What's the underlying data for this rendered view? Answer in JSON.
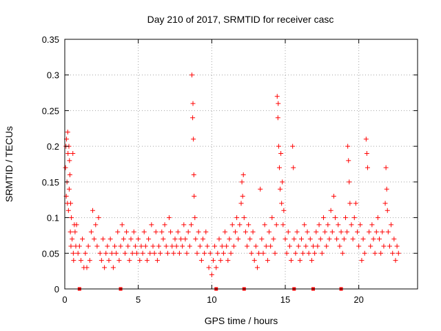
{
  "chart_data": {
    "type": "scatter",
    "title": "Day 210 of 2017, SRMTID for receiver casc",
    "xlabel": "GPS time / hours",
    "ylabel": "SRMTID / TECUs",
    "xlim": [
      0,
      24
    ],
    "ylim": [
      0,
      0.35
    ],
    "grid": true,
    "marker": "+",
    "color": "#ff0000",
    "x_ticks": [
      0,
      5,
      10,
      15,
      20
    ],
    "x_tick_labels": [
      "0",
      "5",
      "10",
      "15",
      "20"
    ],
    "y_ticks": [
      0,
      0.05,
      0.1,
      0.15,
      0.2,
      0.25,
      0.3,
      0.35
    ],
    "y_tick_labels": [
      "0",
      "0.05",
      "0.1",
      "0.15",
      "0.2",
      "0.25",
      "0.3",
      "0.35"
    ],
    "baseline_markers_x": [
      1.0,
      3.8,
      10.3,
      12.2,
      15.6,
      16.9,
      18.8
    ],
    "series": [
      {
        "name": "casc",
        "points": [
          [
            0.05,
            0.17
          ],
          [
            0.08,
            0.2
          ],
          [
            0.1,
            0.13
          ],
          [
            0.12,
            0.21
          ],
          [
            0.15,
            0.15
          ],
          [
            0.18,
            0.12
          ],
          [
            0.2,
            0.22
          ],
          [
            0.22,
            0.19
          ],
          [
            0.25,
            0.11
          ],
          [
            0.28,
            0.2
          ],
          [
            0.3,
            0.14
          ],
          [
            0.32,
            0.18
          ],
          [
            0.35,
            0.16
          ],
          [
            0.38,
            0.08
          ],
          [
            0.4,
            0.12
          ],
          [
            0.42,
            0.06
          ],
          [
            0.45,
            0.1
          ],
          [
            0.5,
            0.07
          ],
          [
            0.55,
            0.19
          ],
          [
            0.58,
            0.05
          ],
          [
            0.6,
            0.04
          ],
          [
            0.65,
            0.09
          ],
          [
            0.7,
            0.08
          ],
          [
            0.75,
            0.06
          ],
          [
            0.8,
            0.09
          ],
          [
            0.9,
            0.05
          ],
          [
            1.0,
            0.06
          ],
          [
            1.1,
            0.04
          ],
          [
            1.2,
            0.07
          ],
          [
            1.3,
            0.03
          ],
          [
            1.4,
            0.05
          ],
          [
            1.5,
            0.03
          ],
          [
            1.6,
            0.06
          ],
          [
            1.7,
            0.04
          ],
          [
            1.8,
            0.08
          ],
          [
            1.9,
            0.11
          ],
          [
            2.0,
            0.07
          ],
          [
            2.1,
            0.09
          ],
          [
            2.2,
            0.06
          ],
          [
            2.3,
            0.1
          ],
          [
            2.4,
            0.05
          ],
          [
            2.5,
            0.04
          ],
          [
            2.6,
            0.07
          ],
          [
            2.7,
            0.03
          ],
          [
            2.8,
            0.05
          ],
          [
            2.9,
            0.06
          ],
          [
            3.0,
            0.04
          ],
          [
            3.1,
            0.07
          ],
          [
            3.2,
            0.05
          ],
          [
            3.3,
            0.03
          ],
          [
            3.4,
            0.06
          ],
          [
            3.5,
            0.05
          ],
          [
            3.6,
            0.08
          ],
          [
            3.7,
            0.04
          ],
          [
            3.8,
            0.06
          ],
          [
            3.9,
            0.09
          ],
          [
            4.0,
            0.07
          ],
          [
            4.1,
            0.05
          ],
          [
            4.2,
            0.08
          ],
          [
            4.3,
            0.06
          ],
          [
            4.4,
            0.04
          ],
          [
            4.5,
            0.07
          ],
          [
            4.6,
            0.05
          ],
          [
            4.7,
            0.08
          ],
          [
            4.8,
            0.06
          ],
          [
            4.9,
            0.05
          ],
          [
            5.0,
            0.07
          ],
          [
            5.1,
            0.04
          ],
          [
            5.2,
            0.06
          ],
          [
            5.3,
            0.05
          ],
          [
            5.4,
            0.08
          ],
          [
            5.5,
            0.06
          ],
          [
            5.6,
            0.04
          ],
          [
            5.7,
            0.07
          ],
          [
            5.8,
            0.05
          ],
          [
            5.9,
            0.09
          ],
          [
            6.0,
            0.06
          ],
          [
            6.1,
            0.05
          ],
          [
            6.2,
            0.08
          ],
          [
            6.3,
            0.04
          ],
          [
            6.4,
            0.06
          ],
          [
            6.5,
            0.05
          ],
          [
            6.6,
            0.08
          ],
          [
            6.7,
            0.07
          ],
          [
            6.8,
            0.09
          ],
          [
            6.9,
            0.06
          ],
          [
            7.0,
            0.05
          ],
          [
            7.1,
            0.1
          ],
          [
            7.2,
            0.08
          ],
          [
            7.3,
            0.06
          ],
          [
            7.4,
            0.05
          ],
          [
            7.5,
            0.07
          ],
          [
            7.6,
            0.06
          ],
          [
            7.7,
            0.08
          ],
          [
            7.8,
            0.05
          ],
          [
            7.9,
            0.07
          ],
          [
            8.0,
            0.06
          ],
          [
            8.1,
            0.09
          ],
          [
            8.2,
            0.07
          ],
          [
            8.3,
            0.05
          ],
          [
            8.4,
            0.08
          ],
          [
            8.5,
            0.06
          ],
          [
            8.6,
            0.09
          ],
          [
            8.65,
            0.3
          ],
          [
            8.7,
            0.24
          ],
          [
            8.72,
            0.26
          ],
          [
            8.75,
            0.21
          ],
          [
            8.78,
            0.16
          ],
          [
            8.8,
            0.13
          ],
          [
            8.85,
            0.1
          ],
          [
            8.9,
            0.07
          ],
          [
            9.0,
            0.05
          ],
          [
            9.1,
            0.08
          ],
          [
            9.2,
            0.06
          ],
          [
            9.3,
            0.04
          ],
          [
            9.4,
            0.07
          ],
          [
            9.5,
            0.05
          ],
          [
            9.6,
            0.08
          ],
          [
            9.7,
            0.06
          ],
          [
            9.8,
            0.03
          ],
          [
            9.9,
            0.05
          ],
          [
            10.0,
            0.02
          ],
          [
            10.1,
            0.04
          ],
          [
            10.2,
            0.06
          ],
          [
            10.3,
            0.03
          ],
          [
            10.4,
            0.05
          ],
          [
            10.5,
            0.07
          ],
          [
            10.6,
            0.04
          ],
          [
            10.7,
            0.06
          ],
          [
            10.8,
            0.05
          ],
          [
            10.9,
            0.08
          ],
          [
            11.0,
            0.06
          ],
          [
            11.1,
            0.04
          ],
          [
            11.2,
            0.07
          ],
          [
            11.3,
            0.05
          ],
          [
            11.4,
            0.09
          ],
          [
            11.5,
            0.06
          ],
          [
            11.6,
            0.08
          ],
          [
            11.7,
            0.1
          ],
          [
            11.8,
            0.07
          ],
          [
            11.9,
            0.09
          ],
          [
            12.0,
            0.12
          ],
          [
            12.05,
            0.15
          ],
          [
            12.1,
            0.13
          ],
          [
            12.15,
            0.16
          ],
          [
            12.2,
            0.1
          ],
          [
            12.3,
            0.08
          ],
          [
            12.4,
            0.06
          ],
          [
            12.5,
            0.09
          ],
          [
            12.6,
            0.07
          ],
          [
            12.7,
            0.05
          ],
          [
            12.8,
            0.08
          ],
          [
            12.9,
            0.04
          ],
          [
            13.0,
            0.06
          ],
          [
            13.1,
            0.03
          ],
          [
            13.2,
            0.05
          ],
          [
            13.3,
            0.14
          ],
          [
            13.4,
            0.07
          ],
          [
            13.5,
            0.05
          ],
          [
            13.6,
            0.09
          ],
          [
            13.7,
            0.06
          ],
          [
            13.8,
            0.04
          ],
          [
            13.9,
            0.08
          ],
          [
            14.0,
            0.06
          ],
          [
            14.1,
            0.1
          ],
          [
            14.2,
            0.07
          ],
          [
            14.3,
            0.05
          ],
          [
            14.4,
            0.09
          ],
          [
            14.45,
            0.27
          ],
          [
            14.5,
            0.24
          ],
          [
            14.52,
            0.26
          ],
          [
            14.55,
            0.2
          ],
          [
            14.6,
            0.17
          ],
          [
            14.65,
            0.14
          ],
          [
            14.7,
            0.19
          ],
          [
            14.75,
            0.12
          ],
          [
            14.8,
            0.15
          ],
          [
            14.85,
            0.09
          ],
          [
            14.9,
            0.11
          ],
          [
            15.0,
            0.07
          ],
          [
            15.1,
            0.05
          ],
          [
            15.2,
            0.08
          ],
          [
            15.3,
            0.06
          ],
          [
            15.4,
            0.04
          ],
          [
            15.5,
            0.2
          ],
          [
            15.55,
            0.17
          ],
          [
            15.6,
            0.07
          ],
          [
            15.7,
            0.05
          ],
          [
            15.8,
            0.08
          ],
          [
            15.9,
            0.06
          ],
          [
            16.0,
            0.04
          ],
          [
            16.1,
            0.07
          ],
          [
            16.2,
            0.05
          ],
          [
            16.3,
            0.09
          ],
          [
            16.4,
            0.06
          ],
          [
            16.5,
            0.08
          ],
          [
            16.6,
            0.05
          ],
          [
            16.7,
            0.07
          ],
          [
            16.8,
            0.04
          ],
          [
            16.9,
            0.06
          ],
          [
            17.0,
            0.05
          ],
          [
            17.1,
            0.08
          ],
          [
            17.2,
            0.06
          ],
          [
            17.3,
            0.09
          ],
          [
            17.4,
            0.07
          ],
          [
            17.5,
            0.05
          ],
          [
            17.6,
            0.1
          ],
          [
            17.7,
            0.08
          ],
          [
            17.8,
            0.06
          ],
          [
            17.9,
            0.09
          ],
          [
            18.0,
            0.07
          ],
          [
            18.1,
            0.11
          ],
          [
            18.2,
            0.08
          ],
          [
            18.3,
            0.13
          ],
          [
            18.4,
            0.1
          ],
          [
            18.5,
            0.07
          ],
          [
            18.6,
            0.09
          ],
          [
            18.7,
            0.06
          ],
          [
            18.8,
            0.08
          ],
          [
            18.9,
            0.05
          ],
          [
            19.0,
            0.07
          ],
          [
            19.1,
            0.1
          ],
          [
            19.2,
            0.08
          ],
          [
            19.25,
            0.2
          ],
          [
            19.3,
            0.18
          ],
          [
            19.35,
            0.15
          ],
          [
            19.4,
            0.12
          ],
          [
            19.5,
            0.09
          ],
          [
            19.6,
            0.07
          ],
          [
            19.7,
            0.1
          ],
          [
            19.8,
            0.12
          ],
          [
            19.9,
            0.08
          ],
          [
            20.0,
            0.06
          ],
          [
            20.1,
            0.09
          ],
          [
            20.2,
            0.04
          ],
          [
            20.3,
            0.07
          ],
          [
            20.4,
            0.05
          ],
          [
            20.5,
            0.21
          ],
          [
            20.55,
            0.19
          ],
          [
            20.6,
            0.17
          ],
          [
            20.7,
            0.08
          ],
          [
            20.8,
            0.06
          ],
          [
            20.9,
            0.09
          ],
          [
            21.0,
            0.07
          ],
          [
            21.1,
            0.05
          ],
          [
            21.2,
            0.08
          ],
          [
            21.3,
            0.1
          ],
          [
            21.4,
            0.07
          ],
          [
            21.5,
            0.05
          ],
          [
            21.6,
            0.08
          ],
          [
            21.7,
            0.06
          ],
          [
            21.8,
            0.12
          ],
          [
            21.85,
            0.17
          ],
          [
            21.9,
            0.14
          ],
          [
            21.95,
            0.11
          ],
          [
            22.0,
            0.08
          ],
          [
            22.1,
            0.06
          ],
          [
            22.2,
            0.09
          ],
          [
            22.3,
            0.05
          ],
          [
            22.4,
            0.07
          ],
          [
            22.5,
            0.04
          ],
          [
            22.6,
            0.06
          ],
          [
            22.7,
            0.05
          ]
        ]
      }
    ]
  }
}
